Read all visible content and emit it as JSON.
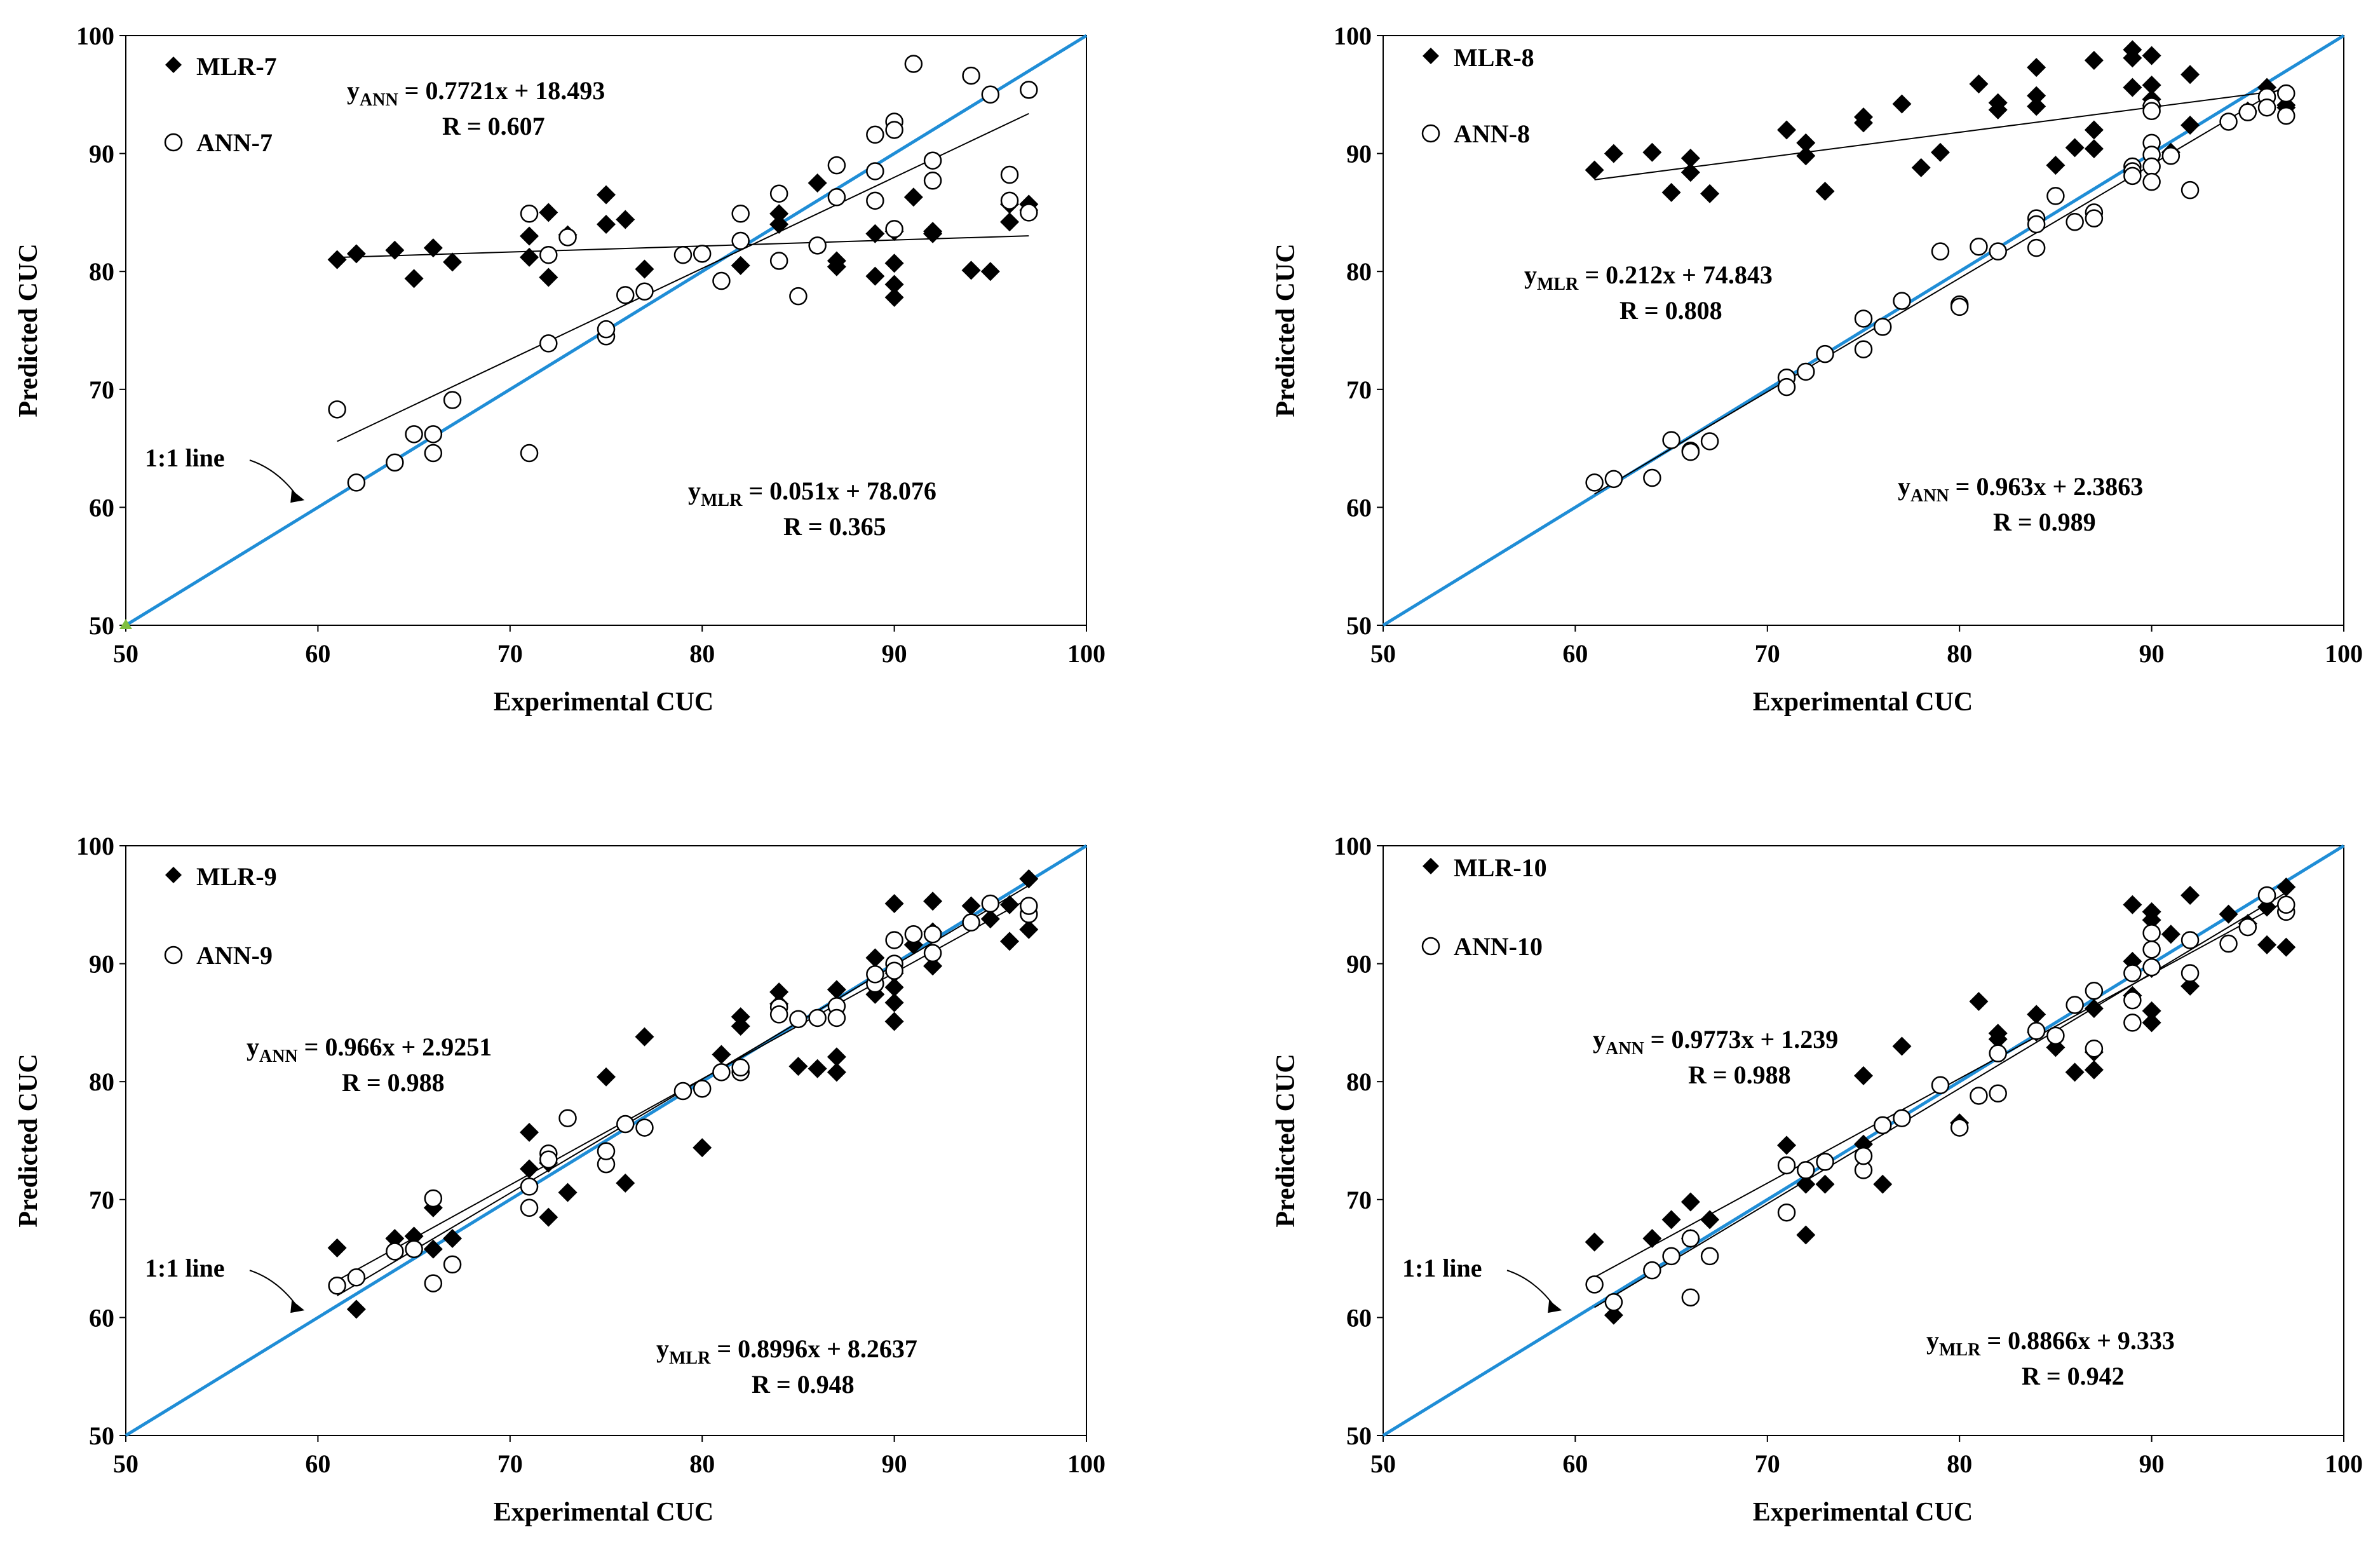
{
  "colors": {
    "one_to_one": "#1f8dd6",
    "marker": "#000000",
    "trend": "#000000",
    "origin_marker": "#7fbf3f"
  },
  "chart_data": [
    {
      "id": "p7",
      "type": "scatter",
      "xlabel": "Experimental CUC",
      "ylabel": "Predicted CUC",
      "xlim": [
        50,
        100
      ],
      "ylim": [
        50,
        100
      ],
      "xticks": [
        50,
        60,
        70,
        80,
        90,
        100
      ],
      "yticks": [
        50,
        60,
        70,
        80,
        90,
        100
      ],
      "has_one_to_one_label": true,
      "one_to_one_label": "1:1 line",
      "legend": {
        "mlr": "MLR-7",
        "ann": "ANN-7",
        "position": "top-left"
      },
      "eq_ann": {
        "prefix": "y",
        "sub": "ANN",
        "rhs": " = 0.7721x + 18.493",
        "r": "R = 0.607",
        "placement": "top-center"
      },
      "eq_mlr": {
        "prefix": "y",
        "sub": "MLR",
        "rhs": " = 0.051x + 78.076",
        "r": "R = 0.365",
        "placement": "bottom-right"
      },
      "series": [
        {
          "name": "MLR-7",
          "marker": "diamond",
          "x": [
            61,
            62,
            64,
            65,
            66,
            67,
            71,
            71,
            72,
            72,
            73,
            75,
            75,
            76,
            77,
            82,
            84,
            84,
            86,
            87,
            87,
            89,
            89,
            90,
            90,
            90,
            90,
            91,
            92,
            92,
            94,
            95,
            96,
            96,
            97,
            97
          ],
          "y": [
            81.0,
            81.5,
            81.8,
            79.4,
            82.0,
            80.8,
            83.0,
            81.2,
            85.0,
            79.5,
            83.1,
            86.5,
            84.0,
            84.4,
            80.2,
            80.5,
            84.9,
            84.0,
            87.5,
            80.9,
            80.4,
            83.2,
            79.6,
            83.4,
            80.7,
            78.9,
            77.8,
            86.3,
            83.4,
            83.2,
            80.1,
            80.0,
            85.7,
            84.2,
            85.7,
            85.2
          ]
        },
        {
          "name": "ANN-7",
          "marker": "circle",
          "x": [
            61,
            62,
            64,
            65,
            66,
            66,
            67,
            71,
            71,
            72,
            72,
            73,
            75,
            75,
            76,
            77,
            79,
            80,
            81,
            82,
            82,
            84,
            84,
            85,
            86,
            87,
            87,
            89,
            89,
            89,
            90,
            90,
            90,
            91,
            92,
            92,
            94,
            95,
            96,
            96,
            97,
            97
          ],
          "y": [
            68.3,
            62.1,
            63.8,
            66.2,
            66.2,
            64.6,
            69.1,
            64.6,
            84.9,
            73.9,
            81.4,
            82.9,
            74.5,
            75.1,
            78.0,
            78.3,
            81.4,
            81.5,
            79.2,
            84.9,
            82.6,
            86.6,
            80.9,
            77.9,
            82.2,
            86.3,
            89.0,
            86.0,
            88.5,
            91.6,
            92.7,
            92.0,
            83.6,
            97.6,
            89.4,
            87.7,
            96.6,
            95.0,
            88.2,
            86.0,
            95.4,
            85.0
          ]
        }
      ],
      "trendlines": [
        {
          "name": "ANN",
          "slope": 0.7721,
          "intercept": 18.493,
          "x_range": [
            61,
            97
          ]
        },
        {
          "name": "MLR",
          "slope": 0.051,
          "intercept": 78.076,
          "x_range": [
            61,
            97
          ]
        }
      ]
    },
    {
      "id": "p8",
      "type": "scatter",
      "xlabel": "Experimental CUC",
      "ylabel": "Predicted CUC",
      "xlim": [
        50,
        100
      ],
      "ylim": [
        50,
        100
      ],
      "xticks": [
        50,
        60,
        70,
        80,
        90,
        100
      ],
      "yticks": [
        50,
        60,
        70,
        80,
        90,
        100
      ],
      "has_one_to_one_label": false,
      "one_to_one_label": "",
      "legend": {
        "mlr": "MLR-8",
        "ann": "ANN-8",
        "position": "top-left"
      },
      "eq_ann": {
        "prefix": "y",
        "sub": "ANN",
        "rhs": " = 0.963x + 2.3863",
        "r": "R = 0.989",
        "placement": "bottom-right"
      },
      "eq_mlr": {
        "prefix": "y",
        "sub": "MLR",
        "rhs": " = 0.212x + 74.843",
        "r": "R = 0.808",
        "placement": "middle-left"
      },
      "series": [
        {
          "name": "MLR-8",
          "marker": "diamond",
          "x": [
            61,
            62,
            64,
            65,
            66,
            66,
            67,
            71,
            72,
            72,
            73,
            75,
            75,
            77,
            78,
            79,
            81,
            82,
            82,
            84,
            84,
            84,
            85,
            86,
            87,
            87,
            87,
            89,
            89,
            89,
            90,
            90,
            90,
            90,
            91,
            92,
            92,
            95,
            96,
            97,
            97
          ],
          "y": [
            88.6,
            90.0,
            90.1,
            86.7,
            89.6,
            88.4,
            86.6,
            92.0,
            90.9,
            89.8,
            86.8,
            93.1,
            92.6,
            94.2,
            88.8,
            90.1,
            95.9,
            93.7,
            94.3,
            97.3,
            94.9,
            94.0,
            89.0,
            90.5,
            97.9,
            92.0,
            90.4,
            98.8,
            98.1,
            95.6,
            98.3,
            95.8,
            94.6,
            94.1,
            90.1,
            96.7,
            92.4,
            93.6,
            95.6,
            94.1,
            93.9
          ]
        },
        {
          "name": "ANN-8",
          "marker": "circle",
          "x": [
            61,
            62,
            64,
            65,
            66,
            66,
            67,
            71,
            71,
            72,
            73,
            75,
            75,
            76,
            77,
            79,
            80,
            80,
            81,
            82,
            84,
            84,
            84,
            85,
            86,
            87,
            87,
            89,
            89,
            89,
            90,
            90,
            90,
            90,
            90,
            90,
            91,
            92,
            94,
            95,
            96,
            96,
            97,
            97
          ],
          "y": [
            62.1,
            62.4,
            62.5,
            65.7,
            64.8,
            64.7,
            65.6,
            71.0,
            70.2,
            71.5,
            73.0,
            76.0,
            73.4,
            75.3,
            77.5,
            81.7,
            77.2,
            77.0,
            82.1,
            81.7,
            84.5,
            84.0,
            82.0,
            86.4,
            84.2,
            85.0,
            84.5,
            88.9,
            88.5,
            88.1,
            94.0,
            93.6,
            90.9,
            89.9,
            88.9,
            87.6,
            89.8,
            86.9,
            92.7,
            93.5,
            94.8,
            93.9,
            93.2,
            95.1
          ]
        }
      ],
      "trendlines": [
        {
          "name": "ANN",
          "slope": 0.963,
          "intercept": 2.3863,
          "x_range": [
            61,
            97
          ]
        },
        {
          "name": "MLR",
          "slope": 0.212,
          "intercept": 74.843,
          "x_range": [
            61,
            97
          ]
        }
      ]
    },
    {
      "id": "p9",
      "type": "scatter",
      "xlabel": "Experimental CUC",
      "ylabel": "Predicted CUC",
      "xlim": [
        50,
        100
      ],
      "ylim": [
        50,
        100
      ],
      "xticks": [
        50,
        60,
        70,
        80,
        90,
        100
      ],
      "yticks": [
        50,
        60,
        70,
        80,
        90,
        100
      ],
      "has_one_to_one_label": true,
      "one_to_one_label": "1:1 line",
      "legend": {
        "mlr": "MLR-9",
        "ann": "ANN-9",
        "position": "top-left"
      },
      "eq_ann": {
        "prefix": "y",
        "sub": "ANN",
        "rhs": " = 0.966x + 2.9251",
        "r": "R = 0.988",
        "placement": "upper-left"
      },
      "eq_mlr": {
        "prefix": "y",
        "sub": "MLR",
        "rhs": " = 0.8996x + 8.2637",
        "r": "R = 0.948",
        "placement": "bottom-right"
      },
      "series": [
        {
          "name": "MLR-9",
          "marker": "diamond",
          "x": [
            61,
            62,
            64,
            65,
            66,
            66,
            67,
            71,
            71,
            72,
            72,
            73,
            75,
            76,
            77,
            80,
            81,
            82,
            82,
            84,
            84,
            85,
            86,
            87,
            87,
            87,
            89,
            89,
            90,
            90,
            90,
            90,
            90,
            91,
            92,
            92,
            92,
            94,
            95,
            96,
            96,
            97,
            97
          ],
          "y": [
            65.9,
            60.7,
            66.7,
            66.9,
            69.3,
            65.8,
            66.7,
            75.7,
            72.6,
            73.1,
            68.5,
            70.6,
            80.4,
            71.4,
            83.8,
            74.4,
            82.3,
            85.5,
            84.7,
            87.6,
            86.6,
            81.3,
            81.1,
            87.8,
            82.1,
            80.8,
            90.5,
            87.4,
            95.1,
            89.2,
            88.0,
            86.7,
            85.1,
            91.6,
            95.3,
            92.7,
            89.8,
            94.9,
            93.8,
            95.0,
            91.9,
            97.2,
            92.9
          ]
        },
        {
          "name": "ANN-9",
          "marker": "circle",
          "x": [
            61,
            62,
            64,
            65,
            66,
            66,
            67,
            71,
            71,
            72,
            72,
            73,
            75,
            75,
            76,
            77,
            79,
            80,
            81,
            82,
            82,
            84,
            84,
            85,
            86,
            87,
            87,
            89,
            89,
            90,
            90,
            90,
            91,
            92,
            92,
            94,
            95,
            97,
            97
          ],
          "y": [
            62.7,
            63.4,
            65.6,
            65.8,
            70.1,
            62.9,
            64.5,
            69.3,
            71.1,
            73.9,
            73.4,
            76.9,
            73.0,
            74.1,
            76.4,
            76.1,
            79.2,
            79.4,
            80.8,
            80.8,
            81.2,
            86.3,
            85.7,
            85.3,
            85.4,
            86.4,
            85.4,
            88.3,
            89.1,
            92.0,
            90.0,
            89.4,
            92.5,
            90.9,
            92.5,
            93.5,
            95.1,
            94.2,
            94.9
          ]
        }
      ],
      "trendlines": [
        {
          "name": "ANN",
          "slope": 0.966,
          "intercept": 2.9251,
          "x_range": [
            61,
            97
          ]
        },
        {
          "name": "MLR",
          "slope": 0.8996,
          "intercept": 8.2637,
          "x_range": [
            61,
            97
          ]
        }
      ]
    },
    {
      "id": "p10",
      "type": "scatter",
      "xlabel": "Experimental CUC",
      "ylabel": "Predicted CUC",
      "xlim": [
        50,
        100
      ],
      "ylim": [
        50,
        100
      ],
      "xticks": [
        50,
        60,
        70,
        80,
        90,
        100
      ],
      "yticks": [
        50,
        60,
        70,
        80,
        90,
        100
      ],
      "has_one_to_one_label": true,
      "one_to_one_label": "1:1 line",
      "legend": {
        "mlr": "MLR-10",
        "ann": "ANN-10",
        "position": "top-left"
      },
      "eq_ann": {
        "prefix": "y",
        "sub": "ANN",
        "rhs": " = 0.9773x + 1.239",
        "r": "R = 0.988",
        "placement": "upper-left"
      },
      "eq_mlr": {
        "prefix": "y",
        "sub": "MLR",
        "rhs": " = 0.8866x + 9.333",
        "r": "R = 0.942",
        "placement": "bottom-right"
      },
      "series": [
        {
          "name": "MLR-10",
          "marker": "diamond",
          "x": [
            61,
            62,
            64,
            65,
            66,
            66,
            67,
            71,
            72,
            72,
            73,
            75,
            75,
            76,
            77,
            80,
            81,
            82,
            82,
            84,
            84,
            85,
            86,
            87,
            87,
            87,
            89,
            89,
            89,
            90,
            90,
            90,
            90,
            90,
            91,
            92,
            92,
            94,
            95,
            96,
            96,
            97,
            97
          ],
          "y": [
            66.4,
            60.2,
            66.7,
            68.3,
            69.8,
            66.7,
            68.3,
            74.6,
            71.3,
            67.0,
            71.3,
            80.5,
            74.7,
            71.3,
            83.0,
            76.5,
            86.8,
            84.1,
            83.6,
            85.7,
            84.2,
            82.9,
            80.8,
            86.2,
            82.5,
            81.0,
            95.0,
            90.2,
            87.3,
            94.4,
            93.7,
            89.6,
            86.0,
            85.0,
            92.5,
            95.8,
            88.1,
            94.2,
            93.4,
            94.8,
            91.6,
            96.5,
            91.4
          ]
        },
        {
          "name": "ANN-10",
          "marker": "circle",
          "x": [
            61,
            62,
            64,
            65,
            66,
            66,
            67,
            71,
            71,
            72,
            73,
            75,
            75,
            76,
            77,
            79,
            80,
            81,
            82,
            82,
            84,
            85,
            86,
            87,
            87,
            89,
            89,
            89,
            90,
            90,
            90,
            92,
            92,
            94,
            95,
            96,
            97,
            97
          ],
          "y": [
            62.8,
            61.3,
            64.0,
            65.2,
            66.7,
            61.7,
            65.2,
            72.9,
            68.9,
            72.5,
            73.2,
            72.5,
            73.7,
            76.3,
            76.9,
            79.7,
            76.1,
            78.8,
            79.0,
            82.4,
            84.3,
            83.9,
            86.5,
            87.7,
            82.8,
            89.2,
            86.9,
            85.0,
            92.6,
            91.2,
            89.7,
            92.0,
            89.2,
            91.7,
            93.1,
            95.8,
            94.4,
            95.0
          ]
        }
      ],
      "trendlines": [
        {
          "name": "ANN",
          "slope": 0.9773,
          "intercept": 1.239,
          "x_range": [
            61,
            97
          ]
        },
        {
          "name": "MLR",
          "slope": 0.8866,
          "intercept": 9.333,
          "x_range": [
            61,
            97
          ]
        }
      ]
    }
  ]
}
